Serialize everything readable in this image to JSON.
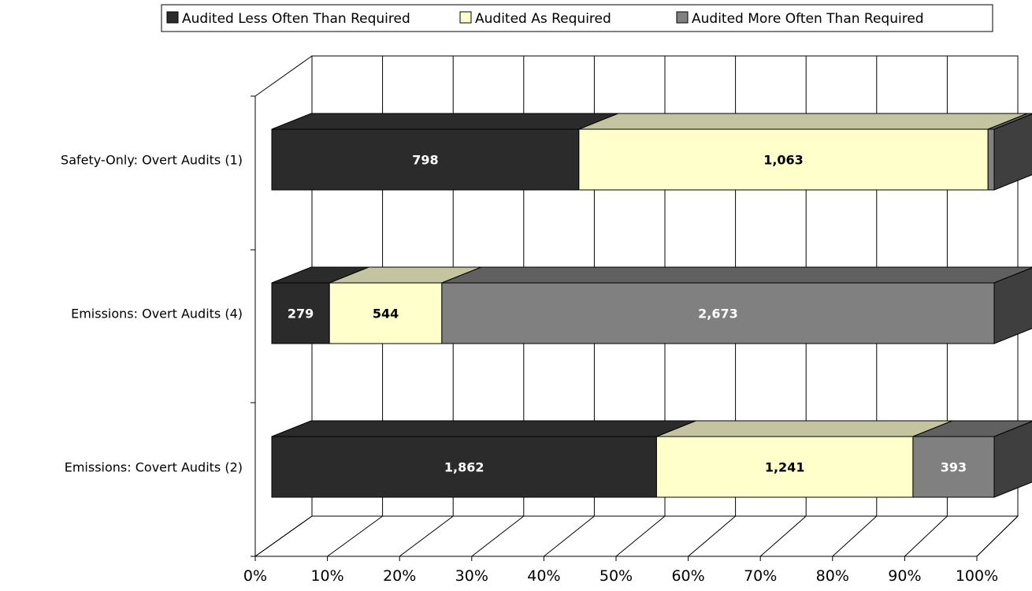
{
  "chart_data": {
    "type": "bar",
    "stacked": "percent",
    "orientation": "horizontal",
    "style": "3d",
    "categories": [
      "Safety-Only: Overt Audits (1)",
      "Emissions: Overt Audits (4)",
      "Emissions: Covert Audits (2)"
    ],
    "series": [
      {
        "name": "Audited Less Often Than Required",
        "values": [
          798,
          279,
          1862
        ],
        "labels": [
          "798",
          "279",
          "1,862"
        ],
        "color": "#2b2b2b"
      },
      {
        "name": "Audited As Required",
        "values": [
          1063,
          544,
          1241
        ],
        "labels": [
          "1,063",
          "544",
          "1,241"
        ],
        "color": "#ffffcc"
      },
      {
        "name": "Audited More Often Than Required",
        "values": [
          16,
          2673,
          393
        ],
        "labels": [
          "16",
          "2,673",
          "393"
        ],
        "color": "#808080"
      }
    ],
    "x_ticks": [
      "0%",
      "10%",
      "20%",
      "30%",
      "40%",
      "50%",
      "60%",
      "70%",
      "80%",
      "90%",
      "100%"
    ],
    "xlim": [
      0,
      100
    ],
    "grid": true,
    "legend": "top"
  }
}
